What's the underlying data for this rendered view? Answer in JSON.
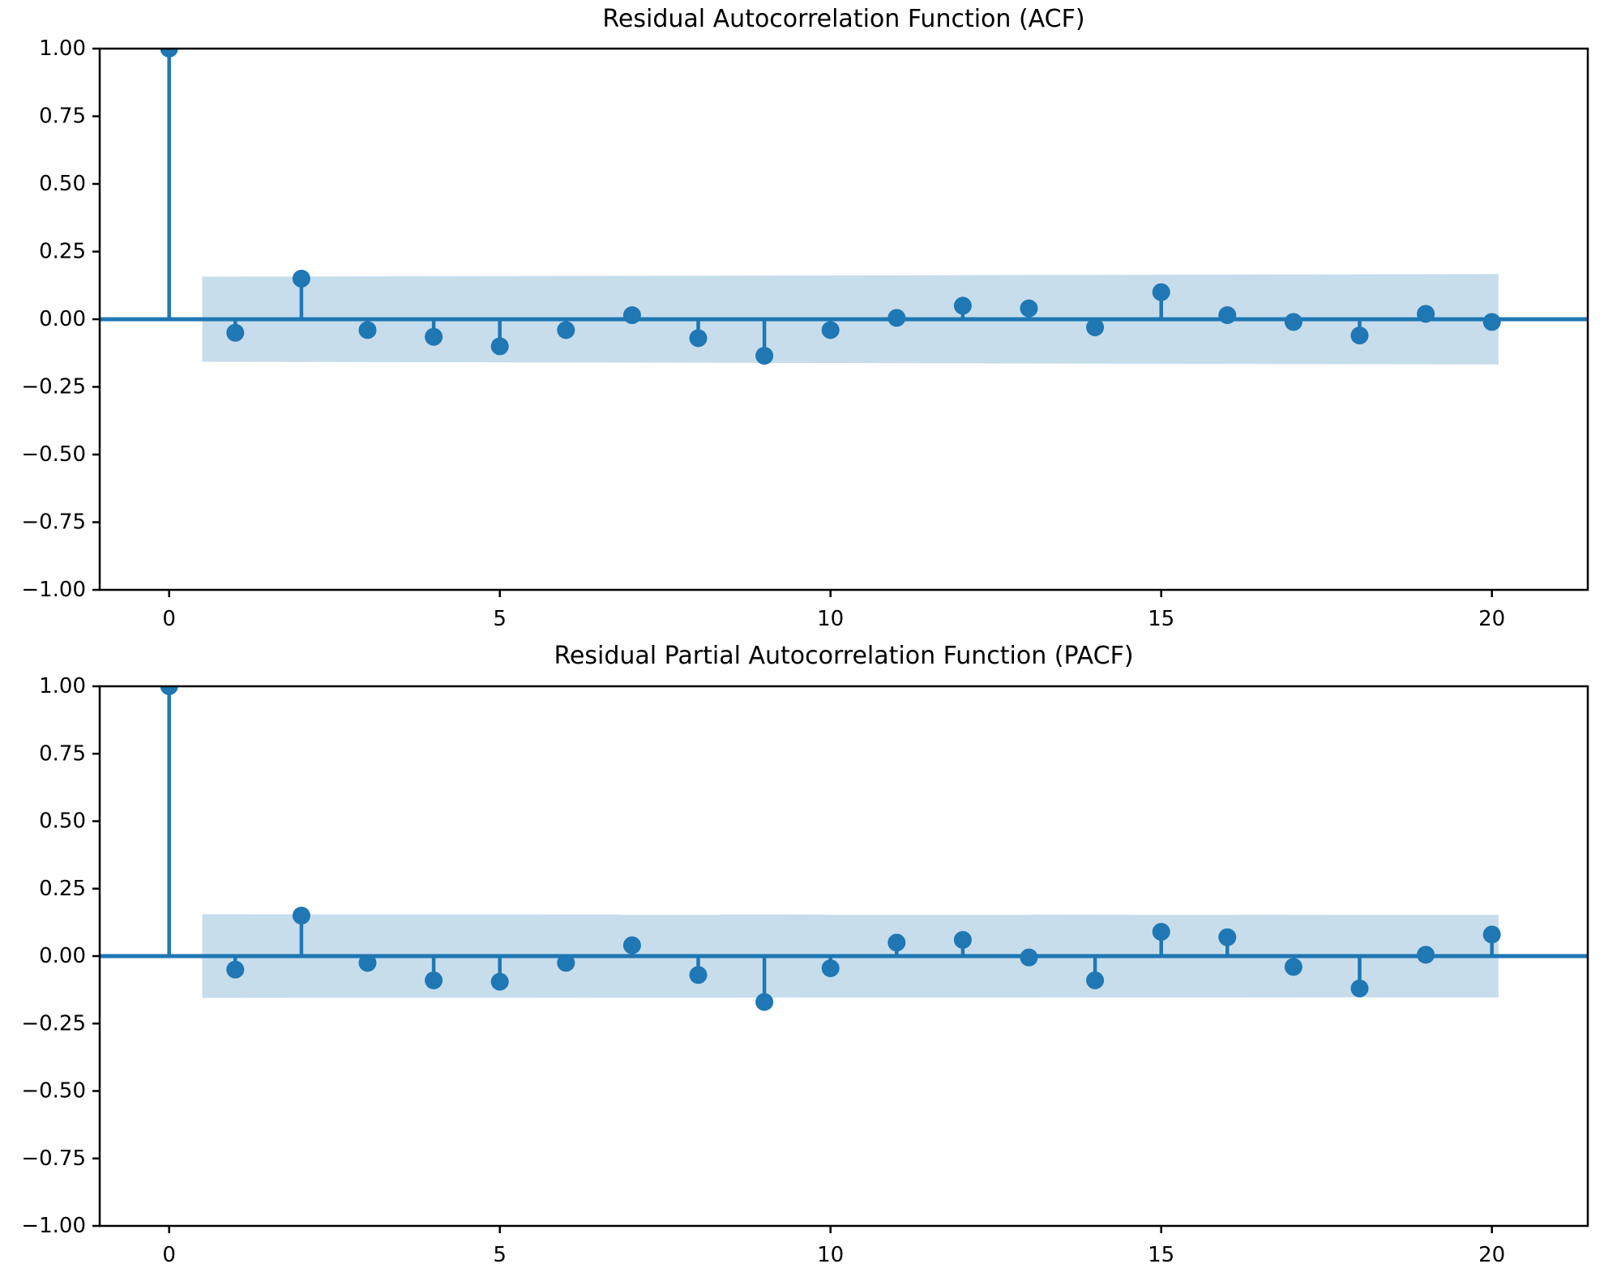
{
  "style": {
    "accent_color": "#1f77b4",
    "band_color": "rgba(31,119,180,0.25)",
    "axis_color": "#000000",
    "background": "#ffffff"
  },
  "chart_data": [
    {
      "type": "stem",
      "title": "Residual Autocorrelation Function (ACF)",
      "xlabel": "",
      "ylabel": "",
      "lags": [
        0,
        1,
        2,
        3,
        4,
        5,
        6,
        7,
        8,
        9,
        10,
        11,
        12,
        13,
        14,
        15,
        16,
        17,
        18,
        19,
        20
      ],
      "values": [
        1.0,
        -0.05,
        0.15,
        -0.04,
        -0.065,
        -0.1,
        -0.04,
        0.015,
        -0.07,
        -0.135,
        -0.04,
        0.005,
        0.05,
        0.04,
        -0.03,
        0.1,
        0.015,
        -0.01,
        -0.06,
        0.02,
        -0.01
      ],
      "confidence_band": {
        "x_start": 0.5,
        "x_end": 20.1,
        "upper_start": 0.157,
        "upper_end": 0.167,
        "lower_start": -0.157,
        "lower_end": -0.167
      },
      "xticks": [
        0,
        5,
        10,
        15,
        20
      ],
      "yticks": [
        1.0,
        0.75,
        0.5,
        0.25,
        0.0,
        -0.25,
        -0.5,
        -0.75,
        -1.0
      ],
      "ytick_labels": [
        "1.00",
        "0.75",
        "0.50",
        "0.25",
        "0.00",
        "−0.25",
        "−0.50",
        "−0.75",
        "−1.00"
      ],
      "xlim": [
        -1.05,
        21.45
      ],
      "ylim": [
        -1.0,
        1.0
      ],
      "grid": false,
      "legend": null
    },
    {
      "type": "stem",
      "title": "Residual Partial Autocorrelation Function (PACF)",
      "xlabel": "",
      "ylabel": "",
      "lags": [
        0,
        1,
        2,
        3,
        4,
        5,
        6,
        7,
        8,
        9,
        10,
        11,
        12,
        13,
        14,
        15,
        16,
        17,
        18,
        19,
        20
      ],
      "values": [
        1.0,
        -0.05,
        0.15,
        -0.025,
        -0.09,
        -0.095,
        -0.025,
        0.04,
        -0.07,
        -0.17,
        -0.045,
        0.05,
        0.06,
        -0.005,
        -0.09,
        0.09,
        0.07,
        -0.04,
        -0.12,
        0.005,
        0.08
      ],
      "confidence_band": {
        "x_start": 0.5,
        "x_end": 20.1,
        "upper_start": 0.155,
        "upper_end": 0.153,
        "lower_start": -0.155,
        "lower_end": -0.153
      },
      "xticks": [
        0,
        5,
        10,
        15,
        20
      ],
      "yticks": [
        1.0,
        0.75,
        0.5,
        0.25,
        0.0,
        -0.25,
        -0.5,
        -0.75,
        -1.0
      ],
      "ytick_labels": [
        "1.00",
        "0.75",
        "0.50",
        "0.25",
        "0.00",
        "−0.25",
        "−0.50",
        "−0.75",
        "−1.00"
      ],
      "xlim": [
        -1.05,
        21.45
      ],
      "ylim": [
        -1.0,
        1.0
      ],
      "grid": false,
      "legend": null
    }
  ]
}
